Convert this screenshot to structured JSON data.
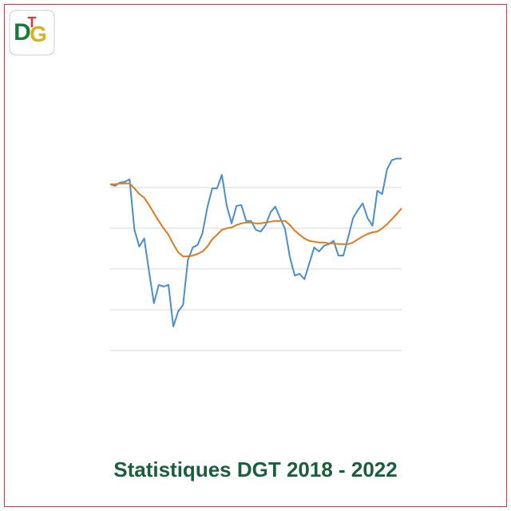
{
  "logo": {
    "letters": [
      "D",
      "G",
      "T"
    ]
  },
  "chart_data": {
    "type": "line",
    "title": "Statistiques DGT 2018 - 2022",
    "series": [
      {
        "color": "#4a8fc8",
        "values": [
          4.08,
          4.04,
          4.12,
          4.14,
          4.2,
          2.96,
          2.55,
          2.75,
          1.94,
          1.16,
          1.61,
          1.57,
          1.61,
          0.59,
          0.96,
          1.12,
          2.22,
          2.53,
          2.59,
          2.88,
          3.51,
          3.98,
          3.98,
          4.31,
          3.55,
          3.12,
          3.55,
          3.57,
          3.18,
          3.18,
          2.96,
          2.92,
          3.08,
          3.39,
          3.53,
          3.25,
          2.98,
          2.29,
          1.84,
          1.88,
          1.75,
          2.14,
          2.53,
          2.43,
          2.57,
          2.61,
          2.69,
          2.33,
          2.33,
          2.78,
          3.25,
          3.45,
          3.61,
          3.25,
          3.06,
          3.92,
          3.84,
          4.45,
          4.67,
          4.71,
          4.71
        ]
      },
      {
        "color": "#e07a1f",
        "values": [
          4.08,
          4.08,
          4.1,
          4.1,
          4.1,
          3.98,
          3.84,
          3.75,
          3.57,
          3.37,
          3.18,
          3.0,
          2.84,
          2.61,
          2.41,
          2.31,
          2.31,
          2.33,
          2.37,
          2.43,
          2.55,
          2.73,
          2.84,
          2.96,
          3.0,
          3.02,
          3.08,
          3.12,
          3.14,
          3.14,
          3.12,
          3.12,
          3.14,
          3.16,
          3.18,
          3.18,
          3.18,
          3.08,
          2.94,
          2.84,
          2.75,
          2.69,
          2.67,
          2.65,
          2.65,
          2.63,
          2.63,
          2.61,
          2.61,
          2.61,
          2.65,
          2.73,
          2.8,
          2.86,
          2.9,
          2.92,
          3.0,
          3.1,
          3.22,
          3.35,
          3.49
        ]
      }
    ],
    "ylim": [
      0,
      4.8
    ],
    "yticks": [
      0,
      1,
      2,
      3,
      4
    ],
    "grid": true
  }
}
